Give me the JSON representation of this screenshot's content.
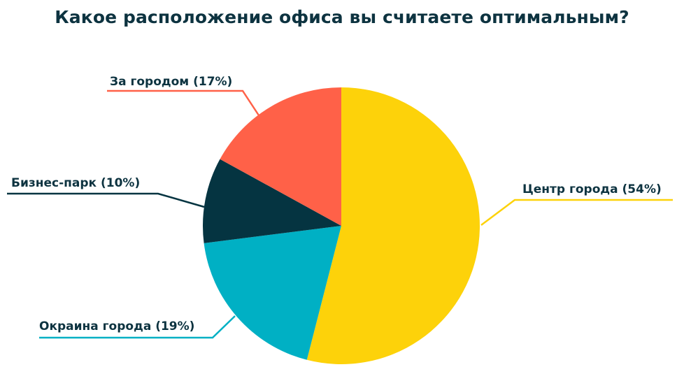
{
  "chart_data": {
    "type": "pie",
    "title": "Какое расположение офиса вы считаете оптимальным?",
    "slices": [
      {
        "label": "Центр города (54%)",
        "value": 54,
        "color": "#fdd20a"
      },
      {
        "label": "Окраина города (19%)",
        "value": 19,
        "color": "#00b0c4"
      },
      {
        "label": "Бизнес-парк (10%)",
        "value": 10,
        "color": "#053441"
      },
      {
        "label": "За городом (17%)",
        "value": 17,
        "color": "#ff6148"
      }
    ],
    "start_angle_deg": 0,
    "direction": "clockwise"
  }
}
